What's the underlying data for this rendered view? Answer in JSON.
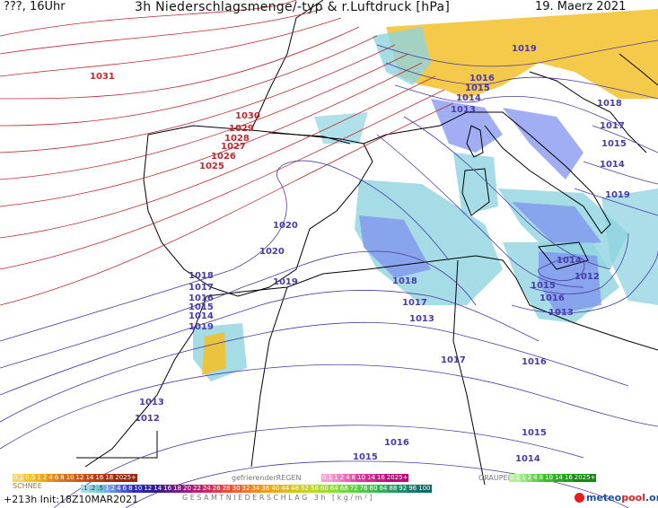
{
  "header": {
    "location": "???, 16Uhr",
    "title": "3h Niederschlagsmenge/-typ & r.Luftdruck [hPa]",
    "date": "19. Maerz 2021"
  },
  "isobars_high": {
    "color": "#c0282c",
    "labels": [
      "1031",
      "1030",
      "1029",
      "1028",
      "1027",
      "1026",
      "1025"
    ]
  },
  "isobars_low": {
    "color": "#4a3aa8",
    "labels": [
      "1019",
      "1016",
      "1015",
      "1014",
      "1013",
      "1018",
      "1017",
      "1015",
      "1014",
      "1019",
      "1020",
      "1020",
      "1019",
      "1018",
      "1017",
      "1016",
      "1015",
      "1014",
      "1019",
      "1018",
      "1017",
      "1013",
      "1014",
      "1015",
      "1016",
      "1013",
      "1012",
      "1017",
      "1016",
      "1015",
      "1014",
      "1016",
      "1015",
      "1013",
      "1012"
    ]
  },
  "colors": {
    "snow": "#f3c12a",
    "rain": "#8fd3e0",
    "graupel": "#7a8cf0",
    "coast": "#000000"
  },
  "legend": {
    "snow": {
      "label": "SCHNEE",
      "values": [
        "0.1",
        "0.5",
        "1",
        "2",
        "4",
        "6",
        "8",
        "10",
        "12",
        "14",
        "16",
        "18",
        "2025+"
      ]
    },
    "freezing_rain": {
      "label": "gefrierenderREGEN",
      "values": [
        "0.1",
        "1",
        "2",
        "4",
        "8",
        "10",
        "14",
        "16",
        "2025+"
      ]
    },
    "graupel": {
      "label": "GRAUPEL",
      "values": [
        "0.1",
        "1",
        "2",
        "4",
        "8",
        "10",
        "14",
        "16",
        "2025+"
      ]
    },
    "total": {
      "label": "GESAMTNIEDERSCHLAG 3h [kg/m²]",
      "values": [
        ".1",
        ".2",
        ".5",
        "1",
        "2",
        "4",
        "6",
        "8",
        "10",
        "12",
        "14",
        "16",
        "18",
        "20",
        "22",
        "24",
        "26",
        "28",
        "30",
        "32",
        "34",
        "36",
        "40",
        "44",
        "48",
        "52",
        "56",
        "60",
        "64",
        "68",
        "72",
        "76",
        "80",
        "84",
        "88",
        "92",
        "96",
        "100"
      ]
    }
  },
  "run_info": "+213h Init:18Z10MAR2021",
  "logo": {
    "part1": "meteo",
    "part2": "pool",
    "suffix": ".org"
  }
}
